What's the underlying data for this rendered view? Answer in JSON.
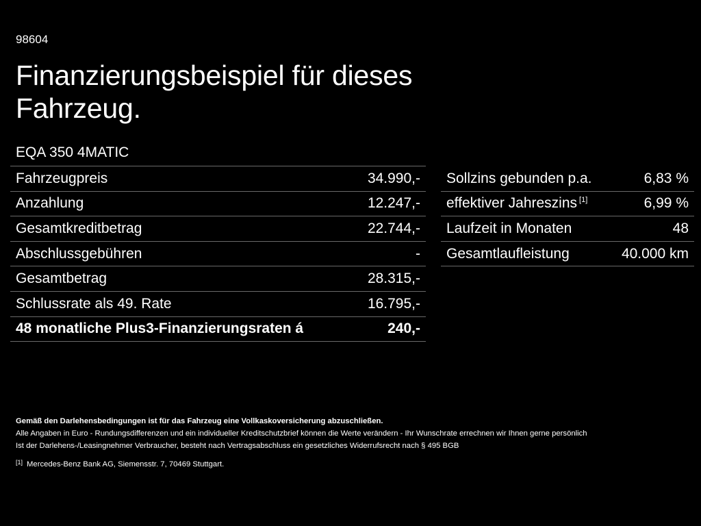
{
  "header": {
    "code": "98604",
    "title_line1": "Finanzierungsbeispiel für dieses",
    "title_line2": "Fahrzeug.",
    "model": "EQA 350 4MATIC"
  },
  "left_table": [
    {
      "label": "Fahrzeugpreis",
      "value": "34.990,-"
    },
    {
      "label": "Anzahlung",
      "value": "12.247,-"
    },
    {
      "label": "Gesamtkreditbetrag",
      "value": "22.744,-"
    },
    {
      "label": "Abschlussgebühren",
      "value": "-"
    },
    {
      "label": "Gesamtbetrag",
      "value": "28.315,-"
    },
    {
      "label": "Schlussrate als 49. Rate",
      "value": "16.795,-"
    },
    {
      "label": "48 monatliche Plus3-Finanzierungsraten á",
      "value": "240,-"
    }
  ],
  "right_table": [
    {
      "label": "Sollzins gebunden p.a.",
      "value": "6,83 %"
    },
    {
      "label": "effektiver Jahreszins",
      "footnote": "[1]",
      "value": "6,99 %"
    },
    {
      "label": "Laufzeit in Monaten",
      "value": "48"
    },
    {
      "label": "Gesamtlaufleistung",
      "value": "40.000 km"
    }
  ],
  "notes": {
    "insurance": "Gemäß den Darlehensbedingungen ist für das Fahrzeug eine Vollkaskoversicherung abzuschließen.",
    "euro": "Alle Angaben in Euro - Rundungsdifferenzen und ein individueller Kreditschutzbrief können die Werte verändern - Ihr Wunschrate errechnen wir Ihnen gerne persönlich",
    "withdrawal": "Ist der Darlehens-/Leasingnehmer Verbraucher, besteht nach Vertragsabschluss ein gesetzliches Widerrufsrecht nach § 495 BGB",
    "footnote_marker": "[1]",
    "footnote_text": "Mercedes-Benz Bank AG, Siemensstr. 7, 70469 Stuttgart."
  }
}
